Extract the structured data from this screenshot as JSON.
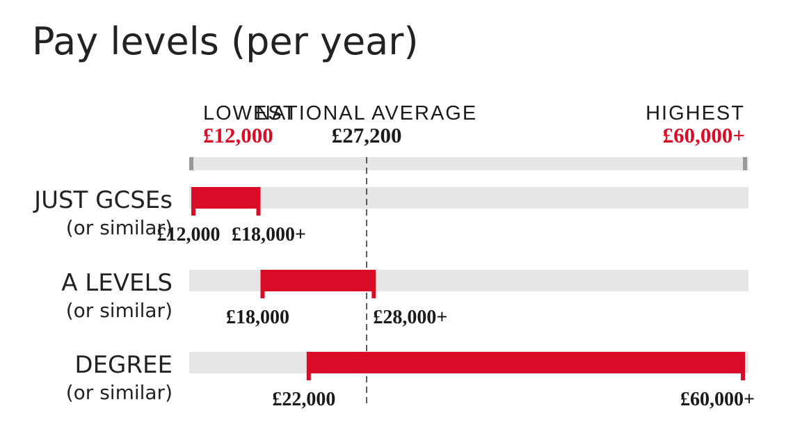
{
  "chart_data": {
    "type": "range-bar",
    "title": "Pay levels (per year)",
    "currency": "£",
    "scale_min": 12000,
    "scale_max": 60000,
    "reference_points": [
      {
        "label": "LOWEST",
        "value": 12000,
        "value_label": "£12,000",
        "color": "#d90b26"
      },
      {
        "label": "NATIONAL AVERAGE",
        "value": 27200,
        "value_label": "£27,200",
        "color": "#1a1a1a"
      },
      {
        "label": "HIGHEST",
        "value": 60000,
        "value_label": "£60,000+",
        "color": "#d90b26"
      }
    ],
    "series": [
      {
        "category": "JUST GCSEs",
        "qualifier": "(or similar)",
        "min": 12000,
        "max": 18000,
        "min_label": "£12,000",
        "max_label": "£18,000+"
      },
      {
        "category": "A LEVELS",
        "qualifier": "(or similar)",
        "min": 18000,
        "max": 28000,
        "min_label": "£18,000",
        "max_label": "£28,000+"
      },
      {
        "category": "DEGREE",
        "qualifier": "(or similar)",
        "min": 22000,
        "max": 60000,
        "min_label": "£22,000",
        "max_label": "£60,000+"
      }
    ],
    "colors": {
      "bar": "#d90b26",
      "track": "#e6e6e6",
      "scale_end": "#999999",
      "average_line": "#333333",
      "text": "#1a1a1a"
    }
  }
}
